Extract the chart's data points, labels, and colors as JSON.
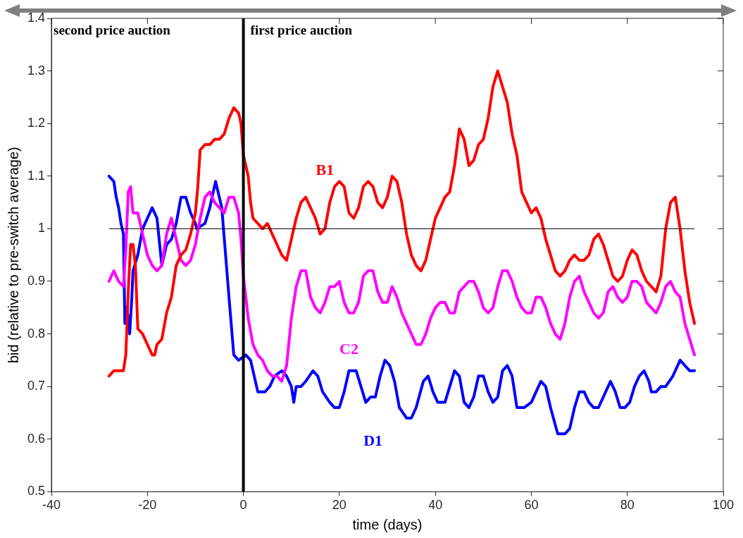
{
  "chart_data": {
    "type": "line",
    "xlabel": "time (days)",
    "ylabel": "bid (relative to pre-switch average)",
    "annotations": [
      "second price auction",
      "first price auction"
    ],
    "xlim": [
      -40,
      100
    ],
    "xticks": [
      -40,
      -20,
      0,
      20,
      40,
      60,
      80,
      100
    ],
    "ylim": [
      0.5,
      1.4
    ],
    "yticks": [
      0.5,
      0.6,
      0.7,
      0.8,
      0.9,
      1,
      1.1,
      1.2,
      1.3,
      1.4
    ],
    "grid": false,
    "legend": false,
    "marker": "none",
    "line_style": "solid",
    "ref_lines": [
      {
        "axis": "y",
        "value": 1,
        "color": "#000000"
      },
      {
        "axis": "x",
        "value": 0,
        "color": "#000000"
      }
    ],
    "series": [
      {
        "name": "B1",
        "color": "#ff0000",
        "x": [
          -28,
          -27,
          -26,
          -25,
          -24.5,
          -24,
          -23.5,
          -23,
          -22.5,
          -22,
          -21,
          -20,
          -19,
          -18.5,
          -18,
          -17,
          -16,
          -15,
          -14,
          -13,
          -12,
          -11,
          -10,
          -9.5,
          -9,
          -8,
          -7,
          -6,
          -5,
          -4,
          -3,
          -2,
          -1,
          -0.5,
          0,
          1,
          1.5,
          2,
          3,
          4,
          5,
          6,
          7,
          8,
          9,
          10,
          11,
          12,
          13,
          14,
          15,
          16,
          17,
          18,
          19,
          20,
          21,
          22,
          23,
          24,
          25,
          26,
          27,
          28,
          29,
          30,
          31,
          32,
          33,
          34,
          35,
          36,
          37,
          38,
          39,
          40,
          41,
          42,
          43,
          44,
          45,
          46,
          47,
          48,
          49,
          50,
          51,
          52,
          53,
          54,
          55,
          56,
          57,
          58,
          59,
          60,
          61,
          62,
          63,
          64,
          65,
          66,
          67,
          68,
          69,
          70,
          71,
          72,
          73,
          74,
          75,
          76,
          77,
          78,
          79,
          80,
          81,
          82,
          83,
          84,
          85,
          86,
          87,
          88,
          89,
          90,
          91,
          92,
          93,
          94
        ],
        "values": [
          0.72,
          0.73,
          0.73,
          0.73,
          0.76,
          0.88,
          0.97,
          0.97,
          0.93,
          0.81,
          0.8,
          0.78,
          0.76,
          0.76,
          0.78,
          0.79,
          0.84,
          0.87,
          0.93,
          0.95,
          0.96,
          0.99,
          1.03,
          1.08,
          1.15,
          1.16,
          1.16,
          1.17,
          1.17,
          1.18,
          1.21,
          1.23,
          1.22,
          1.2,
          1.14,
          1.1,
          1.05,
          1.02,
          1.01,
          1,
          1.01,
          0.99,
          0.97,
          0.95,
          0.94,
          0.98,
          1.02,
          1.05,
          1.06,
          1.04,
          1.02,
          0.99,
          1,
          1.05,
          1.08,
          1.09,
          1.08,
          1.03,
          1.02,
          1.04,
          1.08,
          1.09,
          1.08,
          1.05,
          1.04,
          1.06,
          1.1,
          1.09,
          1.05,
          0.99,
          0.95,
          0.93,
          0.92,
          0.94,
          0.98,
          1.02,
          1.04,
          1.06,
          1.07,
          1.12,
          1.19,
          1.17,
          1.12,
          1.13,
          1.16,
          1.17,
          1.21,
          1.27,
          1.3,
          1.27,
          1.24,
          1.18,
          1.14,
          1.07,
          1.05,
          1.03,
          1.04,
          1.02,
          0.98,
          0.95,
          0.92,
          0.91,
          0.92,
          0.94,
          0.95,
          0.94,
          0.94,
          0.95,
          0.98,
          0.99,
          0.97,
          0.94,
          0.91,
          0.9,
          0.91,
          0.94,
          0.96,
          0.95,
          0.92,
          0.9,
          0.89,
          0.88,
          0.91,
          1,
          1.05,
          1.06,
          1,
          0.92,
          0.86,
          0.82
        ]
      },
      {
        "name": "C2",
        "color": "#ff00ff",
        "x": [
          -28,
          -27,
          -26,
          -25,
          -24.5,
          -24,
          -23.5,
          -23,
          -22,
          -21,
          -20,
          -19,
          -18,
          -17,
          -16,
          -15,
          -14,
          -13,
          -12,
          -11,
          -10,
          -9,
          -8,
          -7,
          -6,
          -5,
          -4,
          -3,
          -2,
          -1,
          -0.5,
          0,
          1,
          2,
          3,
          4,
          5,
          6,
          7,
          8,
          9,
          10,
          11,
          12,
          13,
          14,
          15,
          16,
          17,
          18,
          19,
          20,
          21,
          22,
          23,
          24,
          25,
          26,
          27,
          28,
          29,
          30,
          31,
          32,
          33,
          34,
          35,
          36,
          37,
          38,
          39,
          40,
          41,
          42,
          43,
          44,
          45,
          46,
          47,
          48,
          49,
          50,
          51,
          52,
          53,
          54,
          55,
          56,
          57,
          58,
          59,
          60,
          61,
          62,
          63,
          64,
          65,
          66,
          67,
          68,
          69,
          70,
          71,
          72,
          73,
          74,
          75,
          76,
          77,
          78,
          79,
          80,
          81,
          82,
          83,
          84,
          85,
          86,
          87,
          88,
          89,
          90,
          91,
          92,
          93,
          94
        ],
        "values": [
          0.9,
          0.92,
          0.9,
          0.89,
          0.96,
          1.07,
          1.08,
          1.03,
          1.03,
          0.99,
          0.95,
          0.93,
          0.92,
          0.93,
          0.99,
          1.02,
          0.98,
          0.94,
          0.93,
          0.94,
          0.97,
          1.02,
          1.06,
          1.07,
          1.05,
          1.04,
          1.03,
          1.06,
          1.06,
          1.03,
          0.98,
          0.91,
          0.83,
          0.78,
          0.76,
          0.75,
          0.73,
          0.72,
          0.72,
          0.71,
          0.74,
          0.83,
          0.89,
          0.92,
          0.92,
          0.87,
          0.85,
          0.84,
          0.86,
          0.89,
          0.89,
          0.9,
          0.86,
          0.84,
          0.84,
          0.86,
          0.91,
          0.92,
          0.92,
          0.88,
          0.86,
          0.86,
          0.89,
          0.87,
          0.84,
          0.82,
          0.8,
          0.78,
          0.78,
          0.8,
          0.83,
          0.85,
          0.86,
          0.86,
          0.84,
          0.84,
          0.88,
          0.89,
          0.9,
          0.9,
          0.88,
          0.85,
          0.84,
          0.85,
          0.89,
          0.92,
          0.92,
          0.9,
          0.87,
          0.85,
          0.84,
          0.84,
          0.87,
          0.87,
          0.85,
          0.82,
          0.8,
          0.79,
          0.82,
          0.87,
          0.9,
          0.91,
          0.88,
          0.86,
          0.84,
          0.83,
          0.84,
          0.88,
          0.89,
          0.87,
          0.86,
          0.87,
          0.9,
          0.9,
          0.89,
          0.86,
          0.85,
          0.84,
          0.86,
          0.89,
          0.9,
          0.88,
          0.87,
          0.82,
          0.79,
          0.76
        ]
      },
      {
        "name": "D1",
        "color": "#0000ff",
        "x": [
          -28,
          -27,
          -26.5,
          -26,
          -25.5,
          -25,
          -24.7,
          -24.3,
          -24,
          -23.7,
          -23.3,
          -23,
          -22,
          -21,
          -20,
          -19,
          -18,
          -17,
          -16,
          -15,
          -14,
          -13,
          -12,
          -11,
          -10,
          -9.7,
          -8,
          -7,
          -5.8,
          -4.5,
          -3,
          -2,
          -1,
          0.5,
          1.5,
          2,
          3,
          4.5,
          5.5,
          6.5,
          8,
          9,
          10,
          10.5,
          11,
          12,
          13,
          14.5,
          15.5,
          16.5,
          18,
          19,
          20,
          21,
          22,
          23.5,
          24.5,
          25.5,
          26.5,
          27.5,
          28.5,
          29.5,
          30.5,
          31.5,
          32.5,
          34,
          35,
          36,
          37.5,
          38.5,
          39.5,
          40.5,
          42,
          43,
          44,
          45,
          46,
          47,
          48,
          49,
          50,
          51,
          52,
          53,
          54,
          55,
          56,
          57,
          58.5,
          60,
          61,
          62,
          63,
          64,
          65.5,
          67,
          68,
          69,
          70,
          71,
          72,
          73,
          74,
          75.5,
          76.5,
          77.5,
          78.5,
          79.5,
          80.5,
          81.5,
          82.5,
          83.5,
          84.5,
          85,
          86,
          87,
          88,
          89.5,
          91,
          92,
          93,
          94
        ],
        "values": [
          1.1,
          1.09,
          1.06,
          1.04,
          1.01,
          0.99,
          0.82,
          0.85,
          0.83,
          0.8,
          0.86,
          0.92,
          0.95,
          1,
          1.02,
          1.04,
          1.02,
          0.93,
          0.97,
          0.98,
          1.01,
          1.06,
          1.06,
          1.03,
          1.01,
          1,
          1.01,
          1.04,
          1.09,
          1.04,
          0.87,
          0.76,
          0.75,
          0.76,
          0.75,
          0.73,
          0.69,
          0.69,
          0.7,
          0.72,
          0.73,
          0.72,
          0.7,
          0.67,
          0.7,
          0.7,
          0.71,
          0.73,
          0.72,
          0.69,
          0.67,
          0.66,
          0.66,
          0.69,
          0.73,
          0.73,
          0.7,
          0.67,
          0.68,
          0.68,
          0.72,
          0.75,
          0.74,
          0.71,
          0.66,
          0.64,
          0.64,
          0.66,
          0.71,
          0.72,
          0.69,
          0.67,
          0.67,
          0.7,
          0.73,
          0.72,
          0.67,
          0.66,
          0.68,
          0.72,
          0.72,
          0.69,
          0.67,
          0.68,
          0.73,
          0.74,
          0.72,
          0.66,
          0.66,
          0.67,
          0.69,
          0.71,
          0.7,
          0.66,
          0.61,
          0.61,
          0.62,
          0.66,
          0.69,
          0.69,
          0.67,
          0.66,
          0.66,
          0.69,
          0.71,
          0.69,
          0.66,
          0.66,
          0.67,
          0.7,
          0.72,
          0.73,
          0.71,
          0.69,
          0.69,
          0.7,
          0.7,
          0.72,
          0.75,
          0.74,
          0.73,
          0.73
        ]
      }
    ]
  }
}
